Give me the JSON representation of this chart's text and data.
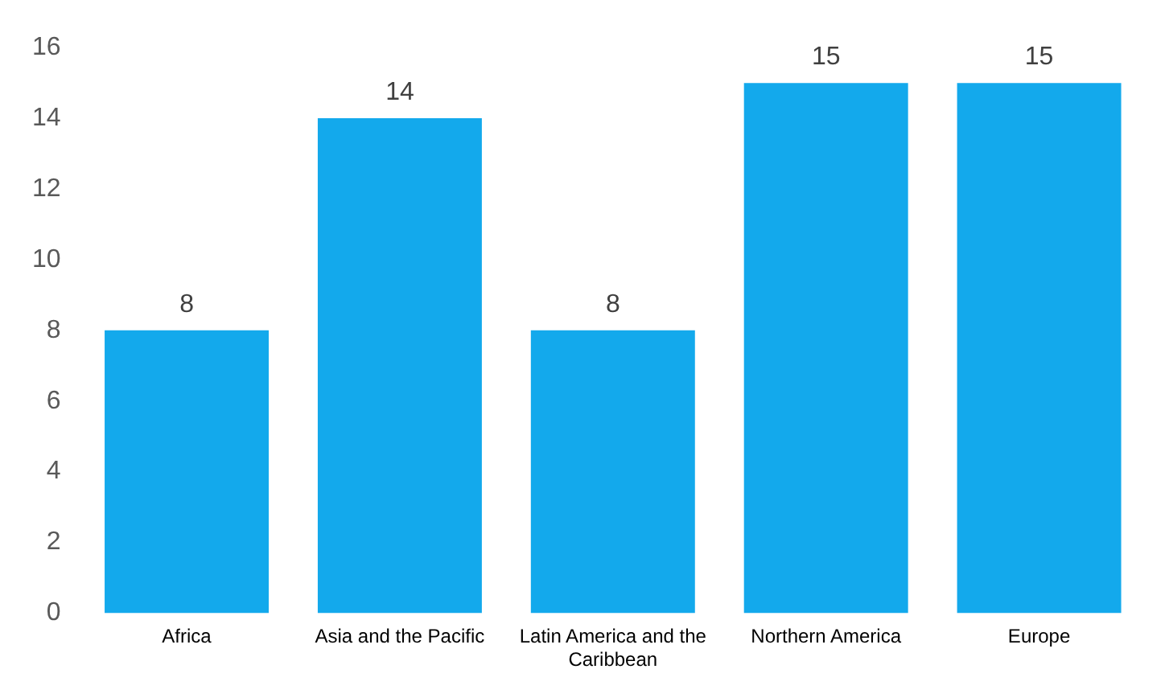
{
  "chart_data": {
    "type": "bar",
    "categories": [
      "Africa",
      "Asia and the Pacific",
      "Latin America and the Caribbean",
      "Northern America",
      "Europe"
    ],
    "values": [
      8,
      14,
      8,
      15,
      15
    ],
    "color": "#13a9ec",
    "ylim": [
      0,
      16
    ],
    "yticks": [
      0,
      2,
      4,
      6,
      8,
      10,
      12,
      14,
      16
    ],
    "data_labels": true,
    "legend": false,
    "grid": false
  }
}
